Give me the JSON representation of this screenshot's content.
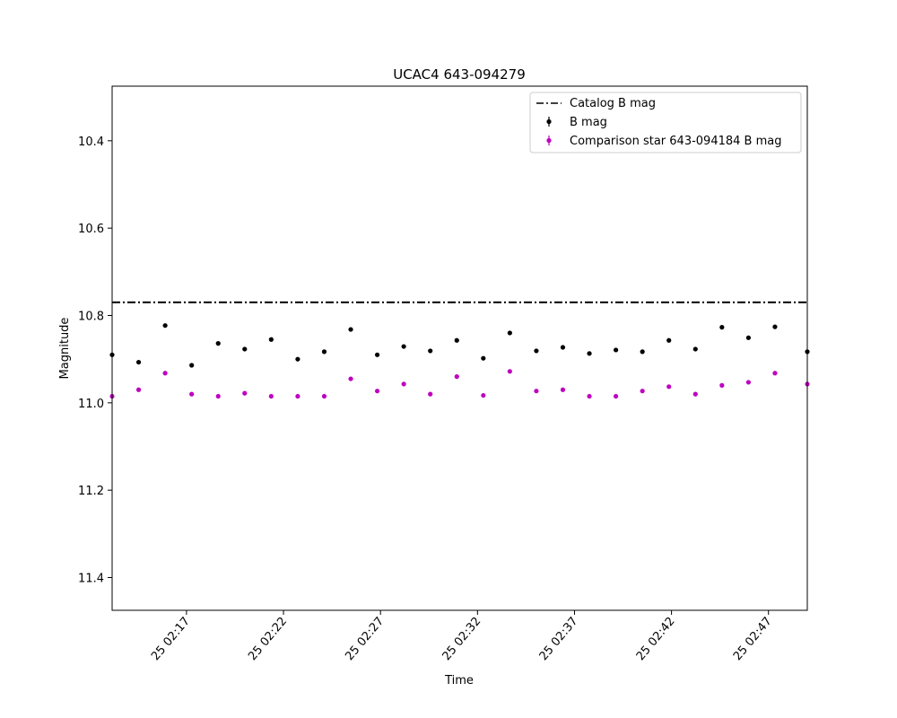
{
  "chart_data": {
    "type": "scatter",
    "title": "UCAC4 643-094279",
    "xlabel": "Time",
    "ylabel": "Magnitude",
    "y_inverted": true,
    "ylim": [
      11.475,
      10.275
    ],
    "xlim": [
      "25 02:13:10",
      "25 02:49:00"
    ],
    "grid": false,
    "legend_position": "upper right",
    "x_ticks": [
      "25 02:17",
      "25 02:22",
      "25 02:27",
      "25 02:32",
      "25 02:37",
      "25 02:42",
      "25 02:47"
    ],
    "y_ticks": [
      "10.4",
      "10.6",
      "10.8",
      "11.0",
      "11.2",
      "11.4"
    ],
    "reference_line": {
      "name": "Catalog B mag",
      "value": 10.77,
      "color": "#000000",
      "style": "dash-dot"
    },
    "series": [
      {
        "name": "B mag",
        "color": "#000000",
        "x": [
          "25 02:13:10",
          "25 02:14:32",
          "25 02:15:54",
          "25 02:17:16",
          "25 02:18:38",
          "25 02:20:00",
          "25 02:21:22",
          "25 02:22:44",
          "25 02:24:06",
          "25 02:25:28",
          "25 02:26:50",
          "25 02:28:12",
          "25 02:29:34",
          "25 02:30:56",
          "25 02:32:18",
          "25 02:33:40",
          "25 02:35:02",
          "25 02:36:24",
          "25 02:37:46",
          "25 02:39:08",
          "25 02:40:30",
          "25 02:41:52",
          "25 02:43:14",
          "25 02:44:36",
          "25 02:45:58",
          "25 02:47:20",
          "25 02:49:00"
        ],
        "y": [
          10.89,
          10.907,
          10.823,
          10.914,
          10.864,
          10.877,
          10.855,
          10.9,
          10.883,
          10.832,
          10.89,
          10.871,
          10.881,
          10.857,
          10.898,
          10.84,
          10.881,
          10.873,
          10.887,
          10.879,
          10.883,
          10.857,
          10.877,
          10.827,
          10.851,
          10.826,
          10.883
        ]
      },
      {
        "name": "Comparison star 643-094184 B mag",
        "color": "#bf00bf",
        "x": [
          "25 02:13:10",
          "25 02:14:32",
          "25 02:15:54",
          "25 02:17:16",
          "25 02:18:38",
          "25 02:20:00",
          "25 02:21:22",
          "25 02:22:44",
          "25 02:24:06",
          "25 02:25:28",
          "25 02:26:50",
          "25 02:28:12",
          "25 02:29:34",
          "25 02:30:56",
          "25 02:32:18",
          "25 02:33:40",
          "25 02:35:02",
          "25 02:36:24",
          "25 02:37:46",
          "25 02:39:08",
          "25 02:40:30",
          "25 02:41:52",
          "25 02:43:14",
          "25 02:44:36",
          "25 02:45:58",
          "25 02:47:20",
          "25 02:49:00"
        ],
        "y": [
          10.985,
          10.97,
          10.932,
          10.98,
          10.985,
          10.978,
          10.985,
          10.985,
          10.985,
          10.945,
          10.973,
          10.957,
          10.98,
          10.94,
          10.983,
          10.928,
          10.973,
          10.97,
          10.985,
          10.985,
          10.973,
          10.963,
          10.98,
          10.96,
          10.953,
          10.932,
          10.957
        ]
      }
    ]
  }
}
